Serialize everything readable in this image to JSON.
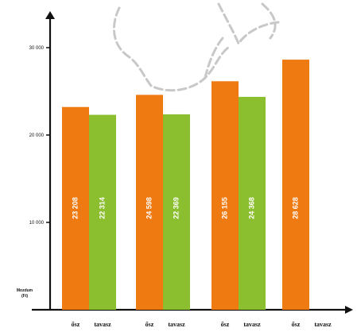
{
  "chart_data": {
    "type": "bar",
    "title": "",
    "xlabel": "",
    "ylabel": "Mozdum (Ft)",
    "ylim": [
      0,
      35000
    ],
    "yticks": [
      {
        "value": 10000,
        "label": "10 000"
      },
      {
        "value": 20000,
        "label": "20 000"
      },
      {
        "value": 30000,
        "label": "30 000"
      }
    ],
    "grid": false,
    "groups": [
      {
        "bars": [
          {
            "label": "ősz",
            "value": 23208,
            "value_label": "23 208",
            "color": "#f07a12"
          },
          {
            "label": "tavasz",
            "value": 22314,
            "value_label": "22 314",
            "color": "#8cbf2f"
          }
        ]
      },
      {
        "bars": [
          {
            "label": "ősz",
            "value": 24598,
            "value_label": "24 598",
            "color": "#f07a12"
          },
          {
            "label": "tavasz",
            "value": 22369,
            "value_label": "22 369",
            "color": "#8cbf2f"
          }
        ]
      },
      {
        "bars": [
          {
            "label": "ősz",
            "value": 26155,
            "value_label": "26 155",
            "color": "#f07a12"
          },
          {
            "label": "tavasz",
            "value": 24368,
            "value_label": "24 368",
            "color": "#8cbf2f"
          }
        ]
      },
      {
        "bars": [
          {
            "label": "ősz",
            "value": 28628,
            "value_label": "28 628",
            "color": "#f07a12"
          },
          {
            "label": "tavasz",
            "value": null,
            "value_label": "",
            "color": "#8cbf2f",
            "label_color": "#9aa0a6"
          }
        ]
      }
    ]
  },
  "colors": {
    "orange": "#f07a12",
    "green": "#8cbf2f",
    "axis": "#111111",
    "sketch": "#c8c8c8"
  }
}
